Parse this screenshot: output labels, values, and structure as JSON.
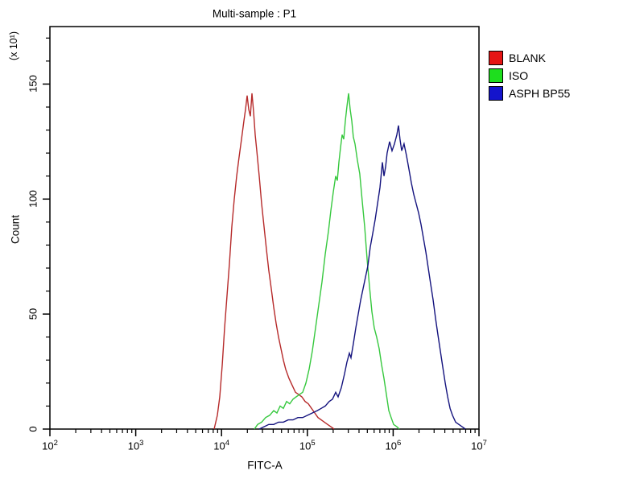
{
  "title": "Multi-sample : P1",
  "axes": {
    "x": {
      "label": "FITC-A",
      "scale": "log10",
      "range_log10": [
        2,
        7
      ],
      "tick_exponents": [
        2,
        3,
        4,
        5,
        6,
        7
      ],
      "minor_tick_mantissas": [
        2,
        3,
        4,
        5,
        6,
        7,
        8,
        9
      ]
    },
    "y": {
      "label": "Count",
      "unit_label": "(x 10¹)",
      "range": [
        0,
        175
      ],
      "major_ticks": [
        0,
        50,
        100,
        150
      ],
      "minor_step": 10
    }
  },
  "legend": {
    "position": "right-outside",
    "items": [
      {
        "label": "BLANK",
        "swatch_color": "#e61414",
        "curve_color": "#b62a2a"
      },
      {
        "label": "ISO",
        "swatch_color": "#1ede1e",
        "curve_color": "#36c83e"
      },
      {
        "label": "ASPH BP55",
        "swatch_color": "#1414cc",
        "curve_color": "#14137e"
      }
    ]
  },
  "chart_data": {
    "type": "line",
    "subtype": "flow-cytometry-overlay-histogram",
    "title": "Multi-sample : P1",
    "xlabel": "FITC-A",
    "ylabel": "Count",
    "y_unit_multiplier": 10,
    "x_scale": "log10",
    "x_range_log10": [
      2,
      7
    ],
    "ylim": [
      0,
      175
    ],
    "grid": false,
    "legend_position": "right-outside",
    "series": [
      {
        "name": "BLANK",
        "color": "#b62a2a",
        "approx_peak": {
          "fitc": 21000,
          "count": 146
        },
        "points": [
          [
            3.914,
            0
          ],
          [
            3.951,
            6
          ],
          [
            3.979,
            14
          ],
          [
            4.008,
            28
          ],
          [
            4.036,
            44
          ],
          [
            4.064,
            58
          ],
          [
            4.092,
            72
          ],
          [
            4.12,
            88
          ],
          [
            4.148,
            100
          ],
          [
            4.176,
            110
          ],
          [
            4.204,
            118
          ],
          [
            4.233,
            126
          ],
          [
            4.261,
            134
          ],
          [
            4.28,
            139
          ],
          [
            4.298,
            145
          ],
          [
            4.317,
            139
          ],
          [
            4.336,
            136
          ],
          [
            4.355,
            146
          ],
          [
            4.373,
            138
          ],
          [
            4.392,
            128
          ],
          [
            4.411,
            121
          ],
          [
            4.439,
            110
          ],
          [
            4.467,
            98
          ],
          [
            4.495,
            88
          ],
          [
            4.523,
            78
          ],
          [
            4.551,
            69
          ],
          [
            4.58,
            61
          ],
          [
            4.608,
            53
          ],
          [
            4.636,
            46
          ],
          [
            4.664,
            40
          ],
          [
            4.692,
            35
          ],
          [
            4.72,
            30
          ],
          [
            4.748,
            26
          ],
          [
            4.786,
            22
          ],
          [
            4.824,
            19
          ],
          [
            4.861,
            16
          ],
          [
            4.899,
            15
          ],
          [
            4.936,
            14
          ],
          [
            4.974,
            12
          ],
          [
            5.011,
            11
          ],
          [
            5.049,
            9
          ],
          [
            5.086,
            7
          ],
          [
            5.124,
            5
          ],
          [
            5.161,
            4
          ],
          [
            5.199,
            3
          ],
          [
            5.236,
            2
          ],
          [
            5.274,
            1
          ],
          [
            5.311,
            0
          ]
        ]
      },
      {
        "name": "ISO",
        "color": "#36c83e",
        "approx_peak": {
          "fitc": 300000,
          "count": 146
        },
        "points": [
          [
            4.383,
            0
          ],
          [
            4.42,
            2
          ],
          [
            4.467,
            3
          ],
          [
            4.514,
            5
          ],
          [
            4.561,
            6
          ],
          [
            4.608,
            8
          ],
          [
            4.645,
            7
          ],
          [
            4.683,
            10
          ],
          [
            4.72,
            9
          ],
          [
            4.758,
            12
          ],
          [
            4.795,
            11
          ],
          [
            4.833,
            13
          ],
          [
            4.87,
            14
          ],
          [
            4.908,
            15
          ],
          [
            4.946,
            16
          ],
          [
            4.983,
            20
          ],
          [
            5.021,
            26
          ],
          [
            5.058,
            34
          ],
          [
            5.096,
            44
          ],
          [
            5.133,
            54
          ],
          [
            5.171,
            64
          ],
          [
            5.208,
            76
          ],
          [
            5.246,
            86
          ],
          [
            5.274,
            95
          ],
          [
            5.302,
            103
          ],
          [
            5.33,
            110
          ],
          [
            5.349,
            108
          ],
          [
            5.368,
            116
          ],
          [
            5.386,
            122
          ],
          [
            5.405,
            128
          ],
          [
            5.424,
            126
          ],
          [
            5.443,
            134
          ],
          [
            5.461,
            140
          ],
          [
            5.48,
            146
          ],
          [
            5.499,
            139
          ],
          [
            5.518,
            134
          ],
          [
            5.536,
            127
          ],
          [
            5.555,
            124
          ],
          [
            5.583,
            117
          ],
          [
            5.611,
            111
          ],
          [
            5.64,
            99
          ],
          [
            5.668,
            88
          ],
          [
            5.696,
            74
          ],
          [
            5.724,
            62
          ],
          [
            5.752,
            51
          ],
          [
            5.78,
            44
          ],
          [
            5.808,
            40
          ],
          [
            5.837,
            35
          ],
          [
            5.865,
            28
          ],
          [
            5.893,
            22
          ],
          [
            5.921,
            15
          ],
          [
            5.949,
            8
          ],
          [
            5.977,
            5
          ],
          [
            6.006,
            2
          ],
          [
            6.043,
            1
          ],
          [
            6.071,
            0
          ]
        ]
      },
      {
        "name": "ASPH BP55",
        "color": "#14137e",
        "approx_peak": {
          "fitc": 1150000,
          "count": 132
        },
        "points": [
          [
            4.439,
            0
          ],
          [
            4.495,
            1
          ],
          [
            4.551,
            2
          ],
          [
            4.608,
            2
          ],
          [
            4.664,
            3
          ],
          [
            4.72,
            3
          ],
          [
            4.777,
            4
          ],
          [
            4.833,
            4
          ],
          [
            4.889,
            5
          ],
          [
            4.946,
            5
          ],
          [
            5.002,
            6
          ],
          [
            5.058,
            7
          ],
          [
            5.115,
            8
          ],
          [
            5.161,
            9
          ],
          [
            5.208,
            10
          ],
          [
            5.255,
            12
          ],
          [
            5.293,
            13
          ],
          [
            5.33,
            16
          ],
          [
            5.358,
            14
          ],
          [
            5.396,
            18
          ],
          [
            5.433,
            24
          ],
          [
            5.461,
            29
          ],
          [
            5.49,
            33
          ],
          [
            5.508,
            31
          ],
          [
            5.536,
            37
          ],
          [
            5.565,
            44
          ],
          [
            5.593,
            50
          ],
          [
            5.621,
            56
          ],
          [
            5.649,
            61
          ],
          [
            5.677,
            66
          ],
          [
            5.705,
            71
          ],
          [
            5.733,
            79
          ],
          [
            5.762,
            85
          ],
          [
            5.79,
            91
          ],
          [
            5.818,
            98
          ],
          [
            5.846,
            105
          ],
          [
            5.874,
            116
          ],
          [
            5.893,
            110
          ],
          [
            5.912,
            114
          ],
          [
            5.93,
            120
          ],
          [
            5.959,
            125
          ],
          [
            5.987,
            121
          ],
          [
            6.015,
            124
          ],
          [
            6.043,
            128
          ],
          [
            6.062,
            132
          ],
          [
            6.08,
            126
          ],
          [
            6.099,
            121
          ],
          [
            6.127,
            124
          ],
          [
            6.155,
            119
          ],
          [
            6.184,
            113
          ],
          [
            6.212,
            107
          ],
          [
            6.24,
            102
          ],
          [
            6.268,
            98
          ],
          [
            6.296,
            94
          ],
          [
            6.325,
            89
          ],
          [
            6.353,
            83
          ],
          [
            6.381,
            77
          ],
          [
            6.409,
            70
          ],
          [
            6.437,
            63
          ],
          [
            6.466,
            56
          ],
          [
            6.494,
            48
          ],
          [
            6.522,
            41
          ],
          [
            6.55,
            34
          ],
          [
            6.578,
            27
          ],
          [
            6.607,
            20
          ],
          [
            6.635,
            14
          ],
          [
            6.663,
            9
          ],
          [
            6.691,
            6
          ],
          [
            6.728,
            3
          ],
          [
            6.766,
            2
          ],
          [
            6.803,
            1
          ],
          [
            6.841,
            0
          ]
        ]
      }
    ]
  }
}
